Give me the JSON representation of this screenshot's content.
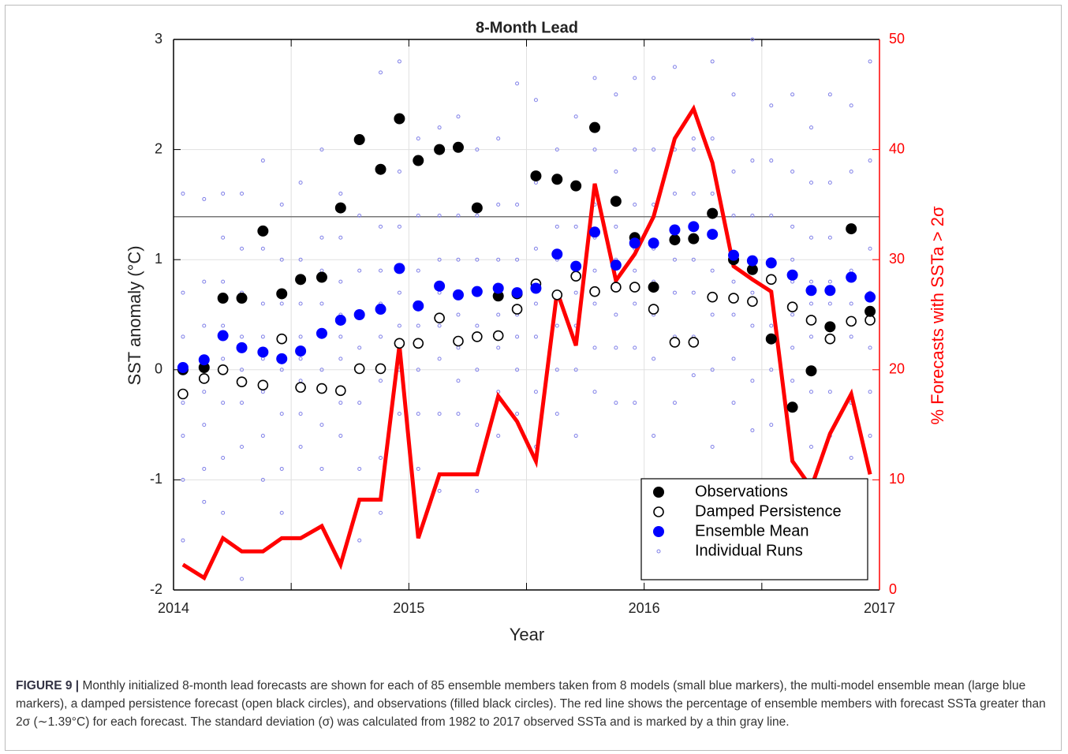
{
  "chart_data": {
    "type": "scatter",
    "title": "8-Month Lead",
    "xlabel": "Year",
    "ylabel": "SST anomaly (°C)",
    "y2label": "% Forecasts with SSTa > 2σ",
    "x": [
      2014.04,
      2014.13,
      2014.21,
      2014.29,
      2014.38,
      2014.46,
      2014.54,
      2014.63,
      2014.71,
      2014.79,
      2014.88,
      2014.96,
      2015.04,
      2015.13,
      2015.21,
      2015.29,
      2015.38,
      2015.46,
      2015.54,
      2015.63,
      2015.71,
      2015.79,
      2015.88,
      2015.96,
      2016.04,
      2016.13,
      2016.21,
      2016.29,
      2016.38,
      2016.46,
      2016.54,
      2016.63,
      2016.71,
      2016.79,
      2016.88,
      2016.96
    ],
    "xlim": [
      2014,
      2017
    ],
    "xticks": [
      2014,
      2015,
      2016,
      2017
    ],
    "xminorticks": [
      2014.5,
      2015.5,
      2016.5
    ],
    "ylim": [
      -2,
      3
    ],
    "yticks": [
      -2,
      -1,
      0,
      1,
      2,
      3
    ],
    "y2lim": [
      0,
      50
    ],
    "y2ticks": [
      0,
      10,
      20,
      30,
      40,
      50
    ],
    "grid": true,
    "hline": 1.39,
    "hline_color": "#777777",
    "legend": "lower right",
    "series": [
      {
        "name": "Observations",
        "marker": "filled",
        "color": "#000000",
        "values": [
          0.0,
          0.02,
          0.65,
          0.65,
          1.26,
          0.69,
          0.82,
          0.84,
          1.47,
          2.09,
          1.82,
          2.28,
          1.9,
          2.0,
          2.02,
          1.47,
          0.67,
          0.69,
          1.76,
          1.73,
          1.67,
          2.2,
          1.53,
          1.2,
          0.75,
          1.18,
          1.19,
          1.42,
          1.0,
          0.91,
          0.28,
          -0.34,
          -0.01,
          0.39,
          1.28,
          0.53
        ]
      },
      {
        "name": "Damped Persistence",
        "marker": "open",
        "color": "#000000",
        "values": [
          -0.22,
          -0.08,
          0.0,
          -0.11,
          -0.14,
          0.28,
          -0.16,
          -0.17,
          -0.19,
          0.01,
          0.01,
          0.24,
          0.24,
          0.47,
          0.26,
          0.3,
          0.31,
          0.55,
          0.78,
          0.68,
          0.85,
          0.71,
          0.75,
          0.75,
          0.55,
          0.25,
          0.25,
          0.66,
          0.65,
          0.62,
          0.82,
          0.57,
          0.45,
          0.28,
          0.44,
          0.45
        ]
      },
      {
        "name": "Ensemble Mean",
        "marker": "filled",
        "color": "#0000ff",
        "values": [
          0.02,
          0.09,
          0.31,
          0.2,
          0.16,
          0.1,
          0.17,
          0.33,
          0.45,
          0.5,
          0.55,
          0.92,
          0.58,
          0.76,
          0.68,
          0.71,
          0.74,
          0.7,
          0.74,
          1.05,
          0.94,
          1.25,
          0.95,
          1.15,
          1.15,
          1.27,
          1.3,
          1.23,
          1.04,
          0.99,
          0.97,
          0.86,
          0.72,
          0.72,
          0.84,
          0.66
        ]
      },
      {
        "name": "Individual Runs",
        "marker": "small",
        "color": "#8080e8",
        "values": [
          [
            -1.55,
            -1.0,
            -0.6,
            -0.3,
            0.0,
            0.3,
            0.7,
            1.6
          ],
          [
            -1.2,
            -0.9,
            -0.5,
            -0.2,
            0.1,
            0.4,
            0.8,
            1.55
          ],
          [
            -1.3,
            -0.8,
            -0.3,
            0.1,
            0.4,
            0.8,
            1.2,
            1.6
          ],
          [
            -1.9,
            -0.7,
            -0.3,
            0.0,
            0.3,
            0.7,
            1.1,
            1.6
          ],
          [
            -1.0,
            -0.6,
            -0.2,
            0.1,
            0.3,
            0.6,
            1.1,
            1.9
          ],
          [
            -1.3,
            -0.9,
            -0.4,
            0.0,
            0.3,
            0.6,
            1.0,
            1.5
          ],
          [
            -0.7,
            -0.4,
            -0.1,
            0.1,
            0.3,
            0.6,
            1.0,
            1.7
          ],
          [
            -0.9,
            -0.5,
            0.0,
            0.3,
            0.6,
            0.9,
            1.2,
            2.0
          ],
          [
            -0.6,
            -0.3,
            0.1,
            0.3,
            0.5,
            0.8,
            1.2,
            1.6
          ],
          [
            -1.55,
            -0.9,
            -0.3,
            0.2,
            0.5,
            0.9,
            1.4,
            2.1
          ],
          [
            -1.3,
            -0.8,
            -0.1,
            0.3,
            0.6,
            0.9,
            1.3,
            2.7
          ],
          [
            -0.4,
            0.0,
            0.4,
            0.7,
            0.9,
            1.3,
            1.8,
            2.8
          ],
          [
            -0.9,
            -0.4,
            0.0,
            0.4,
            0.6,
            0.9,
            1.4,
            2.1
          ],
          [
            -1.1,
            -0.4,
            0.1,
            0.4,
            0.7,
            1.0,
            1.4,
            2.2
          ],
          [
            -0.4,
            -0.1,
            0.2,
            0.5,
            0.7,
            1.0,
            1.4,
            2.3
          ],
          [
            -1.1,
            -0.5,
            0.0,
            0.4,
            0.7,
            1.0,
            1.4,
            2.0
          ],
          [
            -0.6,
            -0.2,
            0.2,
            0.5,
            0.7,
            1.0,
            1.5,
            2.1
          ],
          [
            -0.4,
            0.0,
            0.3,
            0.5,
            0.7,
            1.0,
            1.5,
            2.6
          ],
          [
            -0.7,
            -0.2,
            0.3,
            0.6,
            0.8,
            1.1,
            1.7,
            2.45
          ],
          [
            -0.4,
            0.0,
            0.4,
            0.7,
            1.0,
            1.3,
            1.7,
            2.0
          ],
          [
            -0.6,
            0.0,
            0.4,
            0.7,
            0.9,
            1.3,
            1.7,
            2.3
          ],
          [
            -0.2,
            0.2,
            0.6,
            0.9,
            1.2,
            1.5,
            2.0,
            2.65
          ],
          [
            -0.3,
            0.2,
            0.5,
            0.8,
            1.0,
            1.3,
            1.8,
            2.5
          ],
          [
            -0.3,
            0.2,
            0.6,
            0.9,
            1.1,
            1.5,
            2.0,
            2.65
          ],
          [
            -0.6,
            0.1,
            0.5,
            0.8,
            1.1,
            1.5,
            2.0,
            2.65
          ],
          [
            -0.3,
            0.3,
            0.7,
            1.0,
            1.3,
            1.6,
            2.0,
            2.75
          ],
          [
            -0.05,
            0.3,
            0.7,
            1.0,
            1.3,
            1.6,
            2.0,
            2.1
          ],
          [
            -0.7,
            0.0,
            0.5,
            0.9,
            1.2,
            1.6,
            2.1,
            2.8
          ],
          [
            -0.3,
            0.1,
            0.5,
            0.8,
            1.0,
            1.4,
            1.8,
            2.5
          ],
          [
            -0.55,
            -0.1,
            0.4,
            0.7,
            1.0,
            1.4,
            1.9,
            3.0
          ],
          [
            -0.5,
            0.0,
            0.4,
            0.7,
            1.0,
            1.4,
            1.9,
            2.4
          ],
          [
            -0.1,
            0.2,
            0.5,
            0.8,
            1.0,
            1.3,
            1.8,
            2.5
          ],
          [
            -0.7,
            -0.2,
            0.3,
            0.6,
            0.8,
            1.2,
            1.7,
            2.2
          ],
          [
            -0.6,
            -0.2,
            0.3,
            0.6,
            0.8,
            1.2,
            1.7,
            2.5
          ],
          [
            -0.8,
            -0.3,
            0.3,
            0.6,
            0.9,
            1.3,
            1.8,
            2.4
          ],
          [
            -0.6,
            -0.2,
            0.2,
            0.5,
            0.7,
            1.1,
            1.9,
            2.8
          ]
        ]
      },
      {
        "marker": "line",
        "axis": "y2",
        "color": "#ff0000",
        "values": [
          2.3,
          1.1,
          4.7,
          3.5,
          3.5,
          4.7,
          4.7,
          5.8,
          2.3,
          8.2,
          8.2,
          22.2,
          4.7,
          10.5,
          10.5,
          10.5,
          17.6,
          15.3,
          11.7,
          27.1,
          22.2,
          36.9,
          28.1,
          30.5,
          33.9,
          41.0,
          43.7,
          38.8,
          29.4,
          28.2,
          27.1,
          11.7,
          9.3,
          14.2,
          17.8,
          10.5
        ]
      }
    ]
  },
  "figure_label": "FIGURE 9 |",
  "caption": "Monthly initialized 8-month lead forecasts are shown for each of 85 ensemble members taken from 8 models (small blue markers), the multi-model ensemble mean (large blue markers), a damped persistence forecast (open black circles), and observations (filled black circles). The red line shows the percentage of ensemble members with forecast SSTa greater than 2σ (∼1.39°C) for each forecast. The standard deviation (σ) was calculated from 1982 to 2017 observed SSTa and is marked by a thin gray line."
}
